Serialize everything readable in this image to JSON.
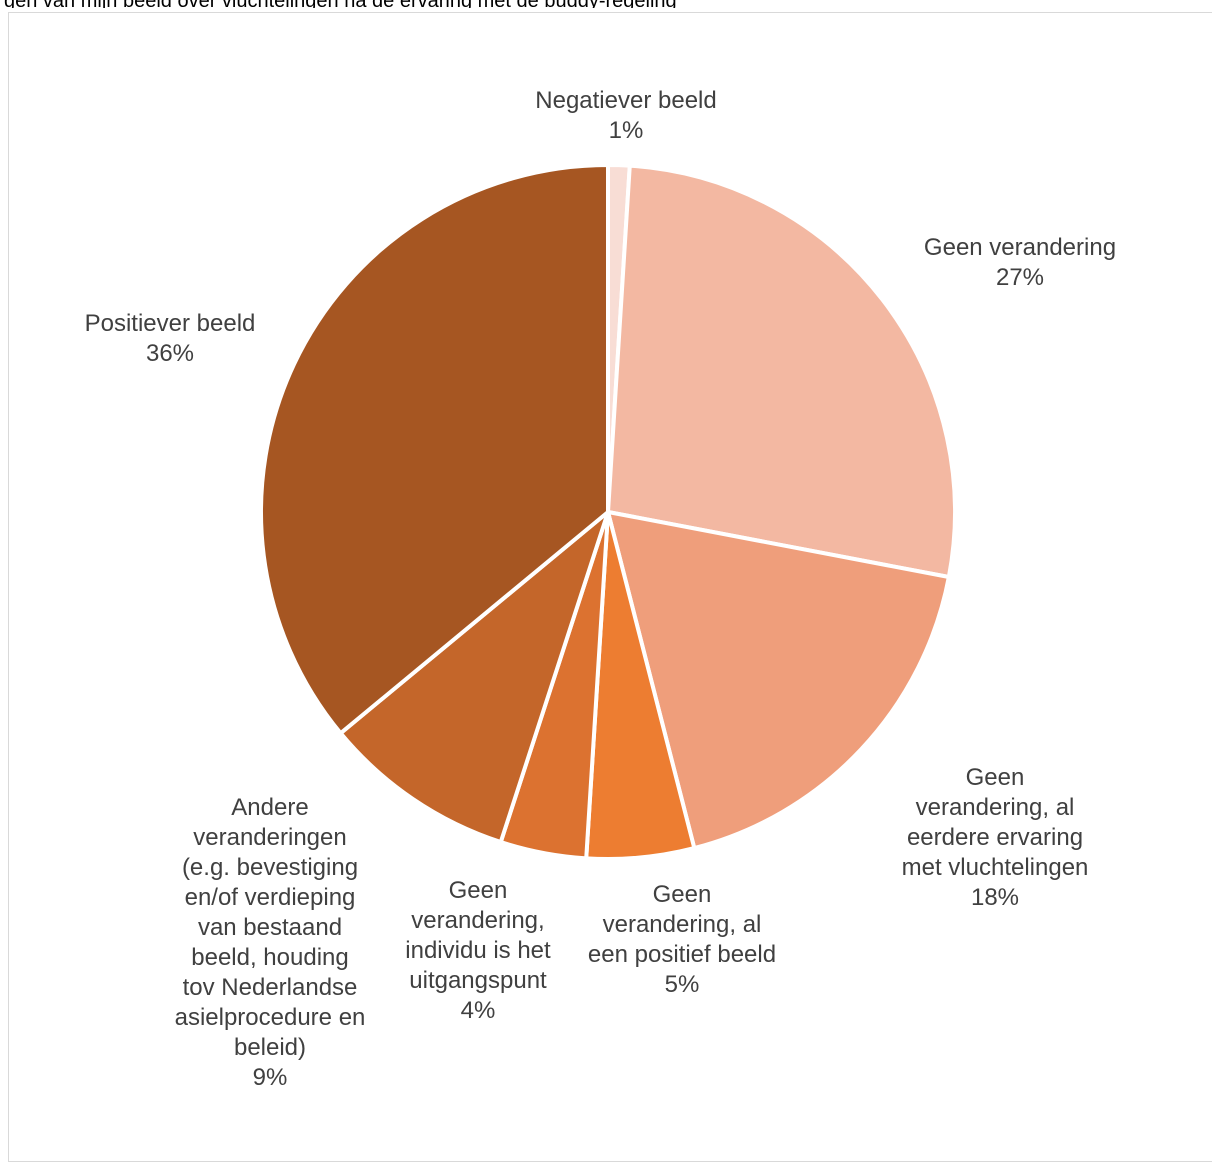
{
  "header_text": "gen van mijn beeld over vluchtelingen na de ervaring met de buddy-regeling",
  "chart_data": {
    "type": "pie",
    "title": "",
    "start_angle_deg": 0,
    "direction": "clockwise",
    "slices": [
      {
        "label": "Negatiever beeld",
        "value": 1,
        "pct_label": "1%",
        "color": "#f8ddd5"
      },
      {
        "label": "Geen verandering",
        "value": 27,
        "pct_label": "27%",
        "color": "#f3b8a2"
      },
      {
        "label": "Geen verandering, al eerdere ervaring met vluchtelingen",
        "value": 18,
        "pct_label": "18%",
        "color": "#ef9e7b"
      },
      {
        "label": "Geen verandering, al een positief beeld",
        "value": 5,
        "pct_label": "5%",
        "color": "#ed7d31"
      },
      {
        "label": "Geen verandering, individu is het uitgangspunt",
        "value": 4,
        "pct_label": "4%",
        "color": "#dc7230"
      },
      {
        "label": "Andere veranderingen (e.g. bevestiging en/of verdieping van bestaand beeld, houding tov Nederlandse asielprocedure en beleid)",
        "value": 9,
        "pct_label": "9%",
        "color": "#c4662a"
      },
      {
        "label": "Positiever beeld",
        "value": 36,
        "pct_label": "36%",
        "color": "#a65622"
      }
    ]
  }
}
